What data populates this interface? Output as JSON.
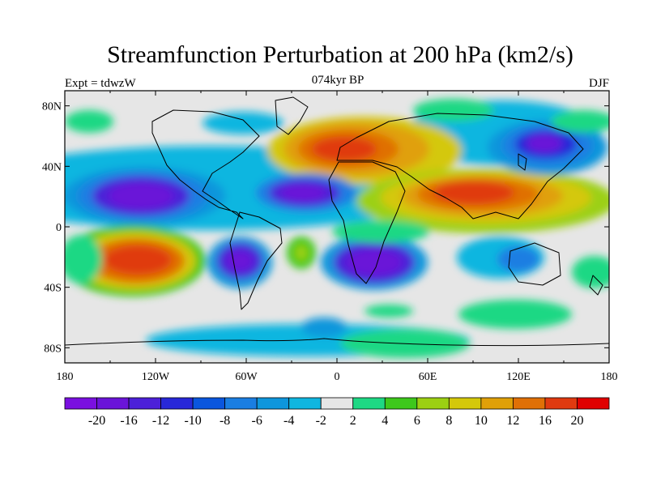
{
  "header": {
    "title": "Streamfunction Perturbation at 200 hPa (km2/s)",
    "left": "Expt = tdwzW",
    "center": "074kyr BP",
    "right": "DJF"
  },
  "axes": {
    "lon_ticks": [
      "180",
      "120W",
      "60W",
      "0",
      "60E",
      "120E",
      "180"
    ],
    "lat_ticks": [
      "80N",
      "40N",
      "0",
      "40S",
      "80S"
    ]
  },
  "colorbar": {
    "labels": [
      "-20",
      "-16",
      "-12",
      "-10",
      "-8",
      "-6",
      "-4",
      "-2",
      "2",
      "4",
      "6",
      "8",
      "10",
      "12",
      "16",
      "20"
    ],
    "colors": [
      "#7a10e0",
      "#6a14d8",
      "#4c20d8",
      "#2828d8",
      "#0a56de",
      "#1a7ee2",
      "#0e96dc",
      "#10b6e0",
      "#e6e6e6",
      "#1ed884",
      "#3ec81c",
      "#9cd012",
      "#d4c80a",
      "#e0a008",
      "#e07006",
      "#e03a10",
      "#e00000"
    ]
  }
}
